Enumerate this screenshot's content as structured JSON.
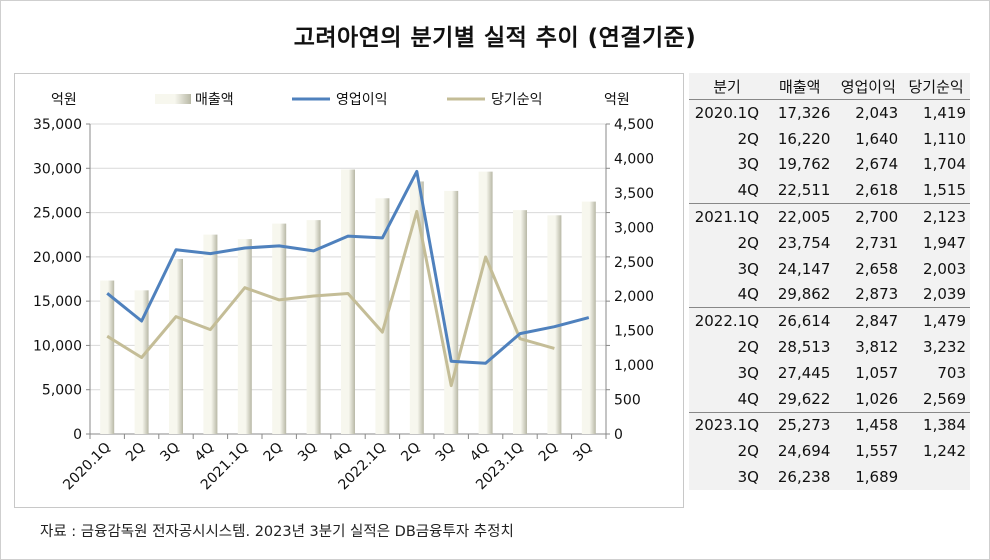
{
  "title": "고려아연의 분기별 실적 추이 (연결기준)",
  "source": "자료 : 금융감독원 전자공시시스템. 2023년 3분기 실적은 DB금융투자 추정치",
  "colors": {
    "revenue_bar_light": "#f7f7ee",
    "revenue_bar_dark": "#b8b8a6",
    "operating_line": "#4f81bd",
    "net_line": "#c4bd97",
    "table_bg": "#f2f2f2"
  },
  "chart_data": {
    "type": "bar+line",
    "categories": [
      "2020.1Q",
      "2Q",
      "3Q",
      "4Q",
      "2021.1Q",
      "2Q",
      "3Q",
      "4Q",
      "2022.1Q",
      "2Q",
      "3Q",
      "4Q",
      "2023.1Q",
      "2Q",
      "3Q"
    ],
    "left_axis_unit": "억원",
    "right_axis_unit": "억원",
    "left_ylim": [
      0,
      35000
    ],
    "left_ticks": [
      "0",
      "5,000",
      "10,000",
      "15,000",
      "20,000",
      "25,000",
      "30,000",
      "35,000"
    ],
    "right_ylim": [
      0,
      4500
    ],
    "right_ticks": [
      "0",
      "500",
      "1,000",
      "1,500",
      "2,000",
      "2,500",
      "3,000",
      "3,500",
      "4,000",
      "4,500"
    ],
    "legend_position": "top",
    "grid": "horizontal",
    "series": [
      {
        "name": "매출액",
        "type": "bar",
        "axis": "left",
        "values": [
          17326,
          16220,
          19762,
          22511,
          22005,
          23754,
          24147,
          29862,
          26614,
          28513,
          27445,
          29622,
          25273,
          24694,
          26238
        ]
      },
      {
        "name": "영업이익",
        "type": "line",
        "axis": "right",
        "values": [
          2043,
          1640,
          2674,
          2618,
          2700,
          2731,
          2658,
          2873,
          2847,
          3812,
          1057,
          1026,
          1458,
          1557,
          1689
        ]
      },
      {
        "name": "당기순익",
        "type": "line",
        "axis": "right",
        "values": [
          1419,
          1110,
          1704,
          1515,
          2123,
          1947,
          2003,
          2039,
          1479,
          3232,
          703,
          2569,
          1384,
          1242,
          null
        ]
      }
    ]
  },
  "table": {
    "headers": [
      "분기",
      "매출액",
      "영업이익",
      "당기순익"
    ],
    "rows": [
      [
        "2020.1Q",
        "17,326",
        "2,043",
        "1,419"
      ],
      [
        "2Q",
        "16,220",
        "1,640",
        "1,110"
      ],
      [
        "3Q",
        "19,762",
        "2,674",
        "1,704"
      ],
      [
        "4Q",
        "22,511",
        "2,618",
        "1,515"
      ],
      [
        "2021.1Q",
        "22,005",
        "2,700",
        "2,123"
      ],
      [
        "2Q",
        "23,754",
        "2,731",
        "1,947"
      ],
      [
        "3Q",
        "24,147",
        "2,658",
        "2,003"
      ],
      [
        "4Q",
        "29,862",
        "2,873",
        "2,039"
      ],
      [
        "2022.1Q",
        "26,614",
        "2,847",
        "1,479"
      ],
      [
        "2Q",
        "28,513",
        "3,812",
        "3,232"
      ],
      [
        "3Q",
        "27,445",
        "1,057",
        "703"
      ],
      [
        "4Q",
        "29,622",
        "1,026",
        "2,569"
      ],
      [
        "2023.1Q",
        "25,273",
        "1,458",
        "1,384"
      ],
      [
        "2Q",
        "24,694",
        "1,557",
        "1,242"
      ],
      [
        "3Q",
        "26,238",
        "1,689",
        ""
      ]
    ]
  }
}
